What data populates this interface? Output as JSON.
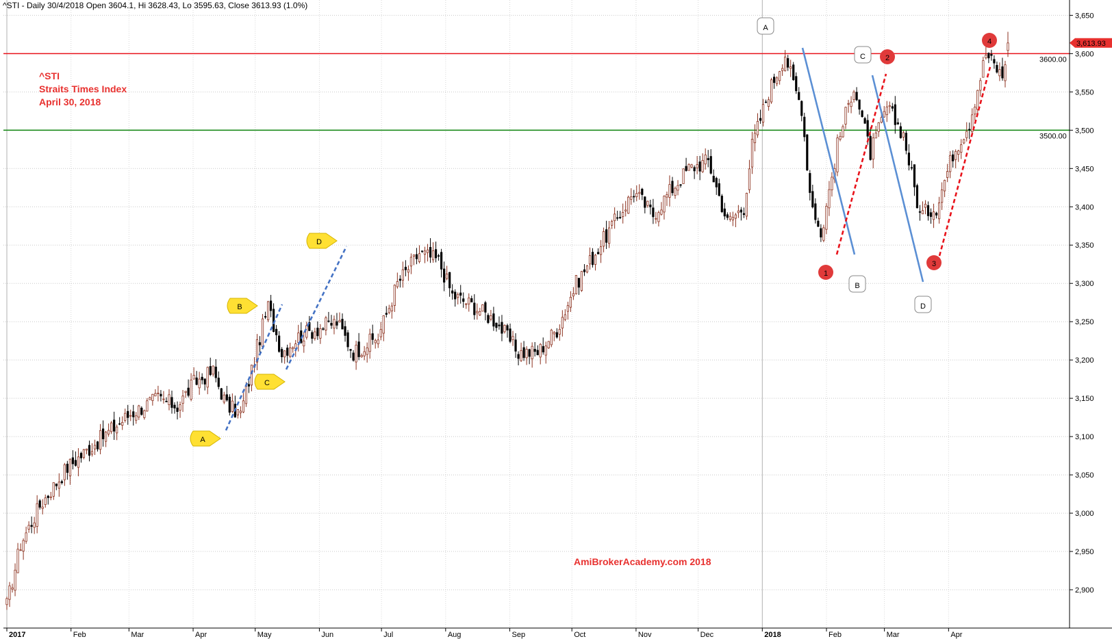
{
  "header": {
    "text": "^STI - Daily 30/4/2018 Open 3604.1, Hi 3628.43, Lo 3595.63, Close 3613.93 (1.0%)"
  },
  "annotation": {
    "lines": [
      "^STI",
      "Straits Times Index",
      "April 30, 2018"
    ],
    "color": "#e8312f"
  },
  "watermark": {
    "text": "AmiBrokerAcademy.com   2018",
    "color": "#e8312f"
  },
  "last_price": {
    "label": "3,613.93",
    "value": 3613.93,
    "color": "#e8312f"
  },
  "horizontal_lines": [
    {
      "value": 3600,
      "label": "3600.00",
      "color": "#e8131b"
    },
    {
      "value": 3500,
      "label": "3500.00",
      "color": "#1a8a1a"
    }
  ],
  "pattern_labels": {
    "yellow": [
      "A",
      "B",
      "C",
      "D"
    ],
    "white": [
      "A",
      "B",
      "C",
      "D"
    ],
    "red": [
      "1",
      "2",
      "3",
      "4"
    ]
  },
  "chart_data": {
    "type": "candlestick",
    "ylim": [
      2850,
      3670
    ],
    "y_ticks": [
      {
        "value": 2900,
        "label": "2,900"
      },
      {
        "value": 2950,
        "label": "2,950"
      },
      {
        "value": 3000,
        "label": "3,000"
      },
      {
        "value": 3050,
        "label": "3,050"
      },
      {
        "value": 3100,
        "label": "3,100"
      },
      {
        "value": 3150,
        "label": "3,150"
      },
      {
        "value": 3200,
        "label": "3,200"
      },
      {
        "value": 3250,
        "label": "3,250"
      },
      {
        "value": 3300,
        "label": "3,300"
      },
      {
        "value": 3350,
        "label": "3,350"
      },
      {
        "value": 3400,
        "label": "3,400"
      },
      {
        "value": 3450,
        "label": "3,450"
      },
      {
        "value": 3500,
        "label": "3,500"
      },
      {
        "value": 3550,
        "label": "3,550"
      },
      {
        "value": 3600,
        "label": "3,600"
      },
      {
        "value": 3650,
        "label": "3,650"
      }
    ],
    "months": [
      {
        "label": "2017",
        "bold": true
      },
      {
        "label": "Feb"
      },
      {
        "label": "Mar"
      },
      {
        "label": "Apr"
      },
      {
        "label": "May"
      },
      {
        "label": "Jun"
      },
      {
        "label": "Jul"
      },
      {
        "label": "Aug"
      },
      {
        "label": "Sep"
      },
      {
        "label": "Oct"
      },
      {
        "label": "Nov"
      },
      {
        "label": "Dec"
      },
      {
        "label": "2018",
        "bold": true
      },
      {
        "label": "Feb"
      },
      {
        "label": "Mar"
      },
      {
        "label": "Apr"
      }
    ],
    "anchor_closes": [
      [
        0,
        2880
      ],
      [
        5,
        2960
      ],
      [
        12,
        3010
      ],
      [
        22,
        3060
      ],
      [
        35,
        3100
      ],
      [
        45,
        3130
      ],
      [
        55,
        3150
      ],
      [
        62,
        3140
      ],
      [
        68,
        3170
      ],
      [
        75,
        3185
      ],
      [
        80,
        3140
      ],
      [
        85,
        3130
      ],
      [
        92,
        3230
      ],
      [
        95,
        3270
      ],
      [
        100,
        3210
      ],
      [
        106,
        3230
      ],
      [
        112,
        3240
      ],
      [
        120,
        3250
      ],
      [
        126,
        3210
      ],
      [
        135,
        3230
      ],
      [
        142,
        3300
      ],
      [
        150,
        3340
      ],
      [
        157,
        3330
      ],
      [
        162,
        3285
      ],
      [
        170,
        3270
      ],
      [
        178,
        3250
      ],
      [
        186,
        3210
      ],
      [
        193,
        3210
      ],
      [
        200,
        3240
      ],
      [
        207,
        3300
      ],
      [
        214,
        3340
      ],
      [
        221,
        3380
      ],
      [
        228,
        3420
      ],
      [
        235,
        3390
      ],
      [
        241,
        3420
      ],
      [
        248,
        3450
      ],
      [
        255,
        3460
      ],
      [
        262,
        3380
      ],
      [
        268,
        3400
      ],
      [
        271,
        3480
      ],
      [
        277,
        3550
      ],
      [
        283,
        3600
      ],
      [
        286,
        3560
      ],
      [
        289,
        3530
      ],
      [
        292,
        3420
      ],
      [
        296,
        3360
      ],
      [
        302,
        3480
      ],
      [
        308,
        3560
      ],
      [
        314,
        3470
      ],
      [
        320,
        3530
      ],
      [
        326,
        3495
      ],
      [
        332,
        3390
      ],
      [
        338,
        3400
      ],
      [
        344,
        3470
      ],
      [
        350,
        3510
      ],
      [
        356,
        3600
      ],
      [
        362,
        3570
      ],
      [
        364,
        3614
      ]
    ],
    "last_candle": {
      "open": 3604.1,
      "high": 3628.43,
      "low": 3595.63,
      "close": 3613.93
    }
  }
}
